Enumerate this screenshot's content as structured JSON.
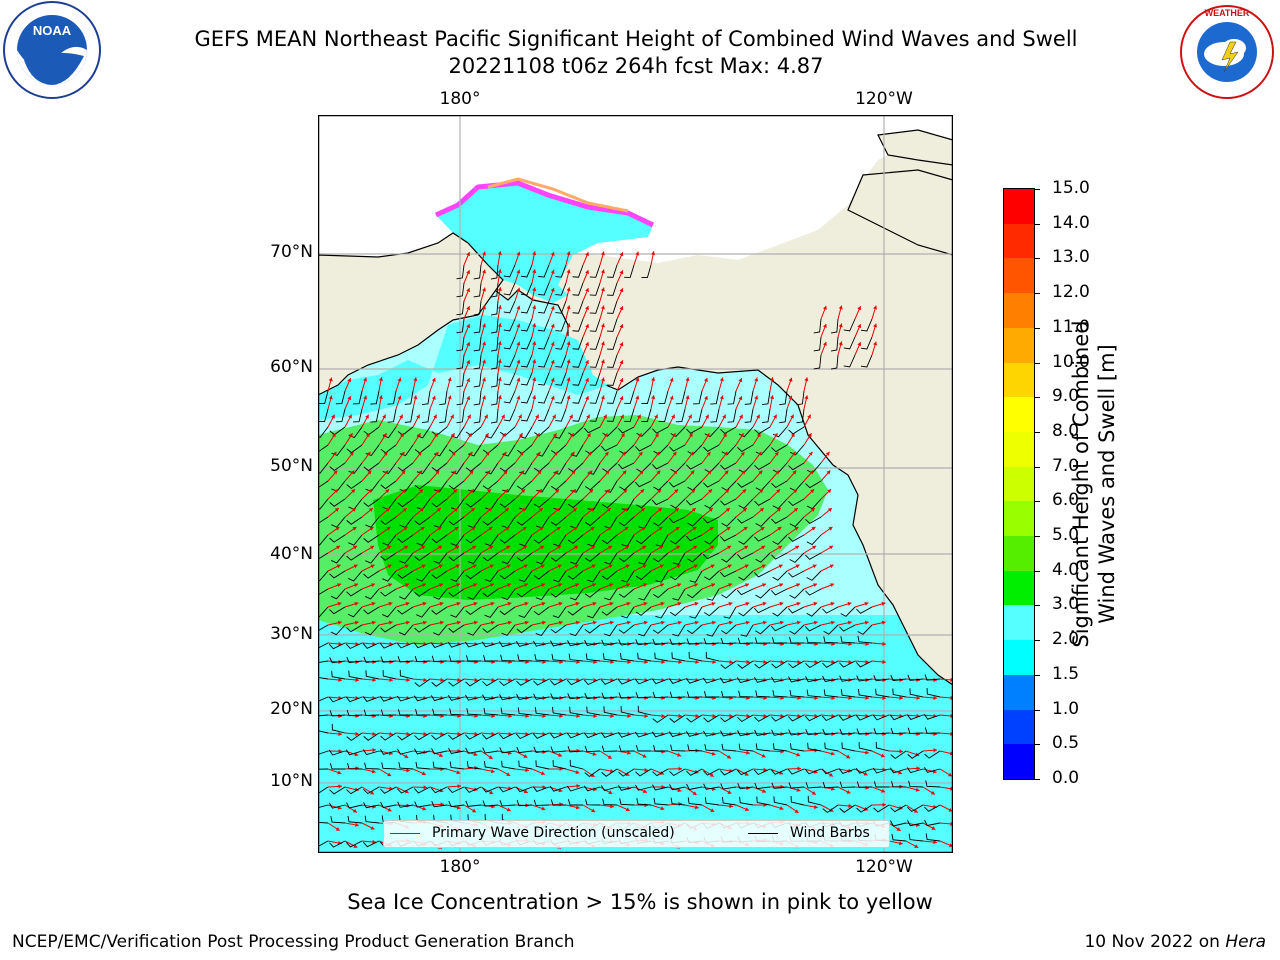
{
  "header": {
    "title_line1": "GEFS MEAN Northeast Pacific Significant Height of Combined Wind Waves and Swell",
    "title_line2": "20221108 t06z 264h fcst   Max: 4.87"
  },
  "logos": {
    "left": {
      "name": "noaa-logo",
      "text": "NOAA"
    },
    "right": {
      "name": "nws-logo",
      "text": "NATIONAL WEATHER SERVICE"
    }
  },
  "map": {
    "lon_labels_top": [
      "180°",
      "120°W"
    ],
    "lon_labels_bottom": [
      "180°",
      "120°W"
    ],
    "lat_labels": [
      "70°N",
      "60°N",
      "50°N",
      "40°N",
      "30°N",
      "20°N",
      "10°N"
    ],
    "legend": {
      "wave_direction": "Primary Wave Direction (unscaled)",
      "wind_barbs": "Wind Barbs"
    },
    "colors": {
      "ocean_low": "#aaffff",
      "ocean_mid": "#55ffff",
      "wave_3_4": "#55ff77",
      "wave_4_5": "#00ee00",
      "land": "#efeddb",
      "arrow": "#ee0000",
      "barb": "#000000",
      "grid": "#b0b0b0"
    }
  },
  "colorbar": {
    "label_line1": "Significant Height of Combined",
    "label_line2": "Wind Waves and Swell [m]",
    "ticks": [
      "15.0",
      "14.0",
      "13.0",
      "12.0",
      "11.0",
      "10.0",
      "9.0",
      "8.0",
      "7.0",
      "6.0",
      "5.0",
      "4.0",
      "3.0",
      "2.0",
      "1.5",
      "1.0",
      "0.5",
      "0.0"
    ],
    "colors_top_to_bottom": [
      "#ff0000",
      "#ff2a00",
      "#ff5500",
      "#ff8000",
      "#ffaa00",
      "#ffd500",
      "#ffff00",
      "#eeff00",
      "#ccff00",
      "#99ff00",
      "#55ee00",
      "#00ee00",
      "#55ff77",
      "#aaffff",
      "#55ffff",
      "#00ffff",
      "#0080ff",
      "#0040ff",
      "#0000ff"
    ]
  },
  "subtitle": "Sea Ice Concentration > 15% is shown in pink to yellow",
  "footer": {
    "left": "NCEP/EMC/Verification Post Processing Product Generation Branch",
    "right_date": "10 Nov 2022 on ",
    "right_host": "Hera"
  }
}
